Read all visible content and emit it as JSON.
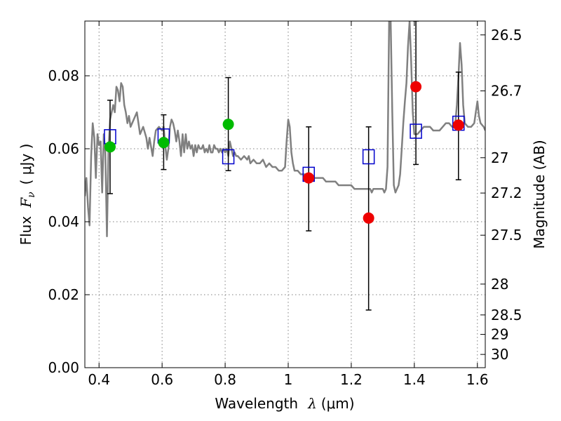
{
  "chart_data": {
    "type": "scatter",
    "xlabel_text": "Wavelength",
    "xlabel_symbol": "λ",
    "xlabel_unit": "(μm)",
    "ylabel_text": "Flux",
    "ylabel_symbol": "F",
    "ylabel_sub": "ν",
    "ylabel_unit": "( μJy )",
    "y2label": "Magnitude (AB)",
    "xlim": [
      0.355,
      1.625
    ],
    "ylim": [
      0.0,
      0.095
    ],
    "grid": true,
    "x_ticks": [
      0.4,
      0.6,
      0.8,
      1.0,
      1.2,
      1.4,
      1.6
    ],
    "x_tick_labels": [
      "0.4",
      "0.6",
      "0.8",
      "1",
      "1.2",
      "1.4",
      "1.6"
    ],
    "y_ticks": [
      0.0,
      0.02,
      0.04,
      0.06,
      0.08
    ],
    "y_tick_labels": [
      "0.00",
      "0.02",
      "0.04",
      "0.06",
      "0.08"
    ],
    "mag_ticks": [
      26.5,
      26.7,
      27.0,
      27.2,
      27.5,
      28.0,
      28.5,
      29.0,
      30.0
    ],
    "mag_tick_labels": [
      "26.5",
      "26.7",
      "27",
      "27.2",
      "27.5",
      "28",
      "28.5",
      "29",
      "30"
    ],
    "colors": {
      "model": "#808080",
      "green": "#00bb00",
      "red": "#ee0000",
      "square": "#0000cc",
      "errorbar": "#000000"
    },
    "model_sed": [
      [
        0.355,
        0.047
      ],
      [
        0.36,
        0.052
      ],
      [
        0.365,
        0.044
      ],
      [
        0.37,
        0.039
      ],
      [
        0.375,
        0.058
      ],
      [
        0.38,
        0.067
      ],
      [
        0.385,
        0.063
      ],
      [
        0.39,
        0.052
      ],
      [
        0.395,
        0.064
      ],
      [
        0.4,
        0.061
      ],
      [
        0.405,
        0.062
      ],
      [
        0.41,
        0.048
      ],
      [
        0.415,
        0.064
      ],
      [
        0.42,
        0.059
      ],
      [
        0.425,
        0.036
      ],
      [
        0.43,
        0.06
      ],
      [
        0.435,
        0.068
      ],
      [
        0.44,
        0.07
      ],
      [
        0.445,
        0.072
      ],
      [
        0.45,
        0.07
      ],
      [
        0.455,
        0.077
      ],
      [
        0.46,
        0.076
      ],
      [
        0.465,
        0.073
      ],
      [
        0.47,
        0.078
      ],
      [
        0.475,
        0.077
      ],
      [
        0.48,
        0.072
      ],
      [
        0.485,
        0.07
      ],
      [
        0.49,
        0.067
      ],
      [
        0.495,
        0.069
      ],
      [
        0.5,
        0.066
      ],
      [
        0.51,
        0.068
      ],
      [
        0.52,
        0.07
      ],
      [
        0.53,
        0.064
      ],
      [
        0.54,
        0.066
      ],
      [
        0.55,
        0.063
      ],
      [
        0.555,
        0.06
      ],
      [
        0.56,
        0.063
      ],
      [
        0.57,
        0.058
      ],
      [
        0.575,
        0.062
      ],
      [
        0.58,
        0.065
      ],
      [
        0.59,
        0.066
      ],
      [
        0.6,
        0.065
      ],
      [
        0.605,
        0.066
      ],
      [
        0.61,
        0.061
      ],
      [
        0.615,
        0.057
      ],
      [
        0.62,
        0.06
      ],
      [
        0.625,
        0.066
      ],
      [
        0.63,
        0.068
      ],
      [
        0.635,
        0.067
      ],
      [
        0.64,
        0.065
      ],
      [
        0.645,
        0.062
      ],
      [
        0.65,
        0.065
      ],
      [
        0.655,
        0.062
      ],
      [
        0.66,
        0.058
      ],
      [
        0.665,
        0.064
      ],
      [
        0.67,
        0.059
      ],
      [
        0.675,
        0.064
      ],
      [
        0.68,
        0.06
      ],
      [
        0.685,
        0.062
      ],
      [
        0.69,
        0.06
      ],
      [
        0.695,
        0.061
      ],
      [
        0.7,
        0.058
      ],
      [
        0.705,
        0.061
      ],
      [
        0.71,
        0.059
      ],
      [
        0.715,
        0.061
      ],
      [
        0.72,
        0.06
      ],
      [
        0.725,
        0.06
      ],
      [
        0.73,
        0.061
      ],
      [
        0.735,
        0.059
      ],
      [
        0.74,
        0.06
      ],
      [
        0.745,
        0.059
      ],
      [
        0.75,
        0.061
      ],
      [
        0.755,
        0.059
      ],
      [
        0.76,
        0.059
      ],
      [
        0.765,
        0.061
      ],
      [
        0.77,
        0.06
      ],
      [
        0.775,
        0.06
      ],
      [
        0.78,
        0.059
      ],
      [
        0.785,
        0.06
      ],
      [
        0.79,
        0.059
      ],
      [
        0.795,
        0.06
      ],
      [
        0.8,
        0.059
      ],
      [
        0.805,
        0.06
      ],
      [
        0.81,
        0.058
      ],
      [
        0.815,
        0.062
      ],
      [
        0.82,
        0.06
      ],
      [
        0.825,
        0.058
      ],
      [
        0.83,
        0.059
      ],
      [
        0.835,
        0.058
      ],
      [
        0.84,
        0.058
      ],
      [
        0.85,
        0.057
      ],
      [
        0.86,
        0.058
      ],
      [
        0.87,
        0.057
      ],
      [
        0.875,
        0.058
      ],
      [
        0.88,
        0.056
      ],
      [
        0.89,
        0.057
      ],
      [
        0.9,
        0.056
      ],
      [
        0.91,
        0.056
      ],
      [
        0.92,
        0.057
      ],
      [
        0.93,
        0.055
      ],
      [
        0.94,
        0.056
      ],
      [
        0.95,
        0.055
      ],
      [
        0.96,
        0.055
      ],
      [
        0.97,
        0.054
      ],
      [
        0.98,
        0.054
      ],
      [
        0.99,
        0.055
      ],
      [
        0.995,
        0.062
      ],
      [
        1.0,
        0.068
      ],
      [
        1.005,
        0.066
      ],
      [
        1.01,
        0.059
      ],
      [
        1.015,
        0.056
      ],
      [
        1.02,
        0.054
      ],
      [
        1.03,
        0.054
      ],
      [
        1.04,
        0.053
      ],
      [
        1.05,
        0.053
      ],
      [
        1.06,
        0.053
      ],
      [
        1.07,
        0.053
      ],
      [
        1.08,
        0.052
      ],
      [
        1.09,
        0.052
      ],
      [
        1.1,
        0.052
      ],
      [
        1.11,
        0.052
      ],
      [
        1.12,
        0.051
      ],
      [
        1.13,
        0.051
      ],
      [
        1.14,
        0.051
      ],
      [
        1.15,
        0.051
      ],
      [
        1.16,
        0.05
      ],
      [
        1.17,
        0.05
      ],
      [
        1.18,
        0.05
      ],
      [
        1.19,
        0.05
      ],
      [
        1.2,
        0.05
      ],
      [
        1.21,
        0.049
      ],
      [
        1.22,
        0.049
      ],
      [
        1.23,
        0.049
      ],
      [
        1.24,
        0.049
      ],
      [
        1.25,
        0.049
      ],
      [
        1.26,
        0.049
      ],
      [
        1.265,
        0.048
      ],
      [
        1.27,
        0.049
      ],
      [
        1.28,
        0.049
      ],
      [
        1.29,
        0.049
      ],
      [
        1.3,
        0.049
      ],
      [
        1.305,
        0.048
      ],
      [
        1.31,
        0.049
      ],
      [
        1.315,
        0.055
      ],
      [
        1.32,
        0.095
      ],
      [
        1.325,
        0.095
      ],
      [
        1.33,
        0.07
      ],
      [
        1.335,
        0.05
      ],
      [
        1.34,
        0.048
      ],
      [
        1.345,
        0.049
      ],
      [
        1.35,
        0.05
      ],
      [
        1.355,
        0.053
      ],
      [
        1.36,
        0.06
      ],
      [
        1.365,
        0.067
      ],
      [
        1.37,
        0.073
      ],
      [
        1.375,
        0.078
      ],
      [
        1.38,
        0.088
      ],
      [
        1.385,
        0.095
      ],
      [
        1.39,
        0.084
      ],
      [
        1.395,
        0.07
      ],
      [
        1.4,
        0.064
      ],
      [
        1.41,
        0.064
      ],
      [
        1.42,
        0.065
      ],
      [
        1.43,
        0.066
      ],
      [
        1.44,
        0.066
      ],
      [
        1.45,
        0.066
      ],
      [
        1.46,
        0.065
      ],
      [
        1.47,
        0.065
      ],
      [
        1.48,
        0.065
      ],
      [
        1.49,
        0.066
      ],
      [
        1.5,
        0.067
      ],
      [
        1.51,
        0.067
      ],
      [
        1.52,
        0.066
      ],
      [
        1.53,
        0.067
      ],
      [
        1.535,
        0.072
      ],
      [
        1.54,
        0.08
      ],
      [
        1.545,
        0.089
      ],
      [
        1.55,
        0.083
      ],
      [
        1.555,
        0.072
      ],
      [
        1.56,
        0.067
      ],
      [
        1.57,
        0.066
      ],
      [
        1.58,
        0.066
      ],
      [
        1.59,
        0.067
      ],
      [
        1.595,
        0.07
      ],
      [
        1.6,
        0.073
      ],
      [
        1.605,
        0.069
      ],
      [
        1.61,
        0.067
      ],
      [
        1.62,
        0.066
      ],
      [
        1.625,
        0.065
      ]
    ],
    "squares": [
      {
        "x": 0.435,
        "y": 0.0633
      },
      {
        "x": 0.605,
        "y": 0.0635
      },
      {
        "x": 0.81,
        "y": 0.0578
      },
      {
        "x": 1.065,
        "y": 0.053
      },
      {
        "x": 1.255,
        "y": 0.0578
      },
      {
        "x": 1.405,
        "y": 0.0648
      },
      {
        "x": 1.54,
        "y": 0.067
      }
    ],
    "errorbars": [
      {
        "x": 0.435,
        "y": 0.0633,
        "lo": 0.0477,
        "hi": 0.0733
      },
      {
        "x": 0.605,
        "y": 0.0635,
        "lo": 0.0543,
        "hi": 0.0693
      },
      {
        "x": 0.81,
        "y": 0.0578,
        "lo": 0.054,
        "hi": 0.0795
      },
      {
        "x": 1.065,
        "y": 0.053,
        "lo": 0.0375,
        "hi": 0.066
      },
      {
        "x": 1.255,
        "y": 0.0578,
        "lo": 0.0158,
        "hi": 0.066
      },
      {
        "x": 1.405,
        "y": 0.0648,
        "lo": 0.0557,
        "hi": 0.095
      },
      {
        "x": 1.54,
        "y": 0.067,
        "lo": 0.0515,
        "hi": 0.081
      }
    ],
    "green_points": [
      {
        "x": 0.435,
        "y": 0.0605
      },
      {
        "x": 0.605,
        "y": 0.0617
      },
      {
        "x": 0.81,
        "y": 0.0667
      }
    ],
    "red_points": [
      {
        "x": 1.065,
        "y": 0.052
      },
      {
        "x": 1.255,
        "y": 0.041
      },
      {
        "x": 1.405,
        "y": 0.077
      },
      {
        "x": 1.54,
        "y": 0.0665
      }
    ]
  }
}
